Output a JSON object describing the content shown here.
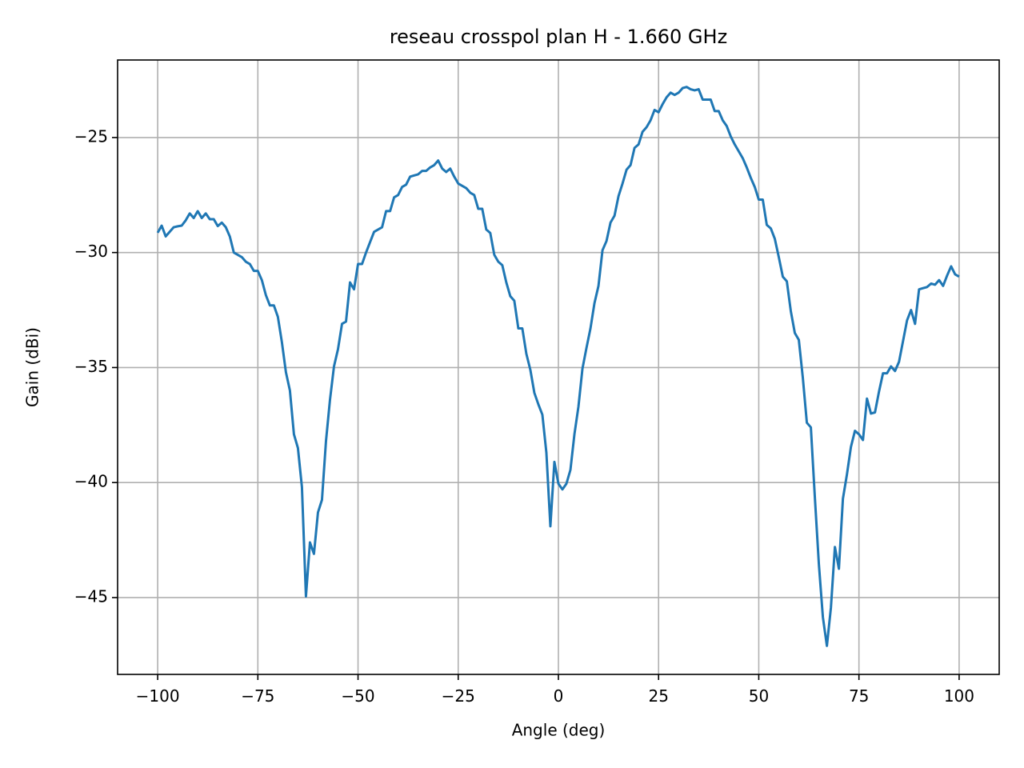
{
  "chart_data": {
    "type": "line",
    "title": "reseau crosspol plan H - 1.660 GHz",
    "x_label": "Angle (deg)",
    "y_label": "Gain (dBi)",
    "x": [
      -100,
      -99,
      -98,
      -97,
      -96,
      -95,
      -94,
      -93,
      -92,
      -91,
      -90,
      -89,
      -88,
      -87,
      -86,
      -85,
      -84,
      -83,
      -82,
      -81,
      -80,
      -79,
      -78,
      -77,
      -76,
      -75,
      -74,
      -73,
      -72,
      -71,
      -70,
      -69,
      -68,
      -67,
      -66,
      -65,
      -64,
      -63,
      -62,
      -61,
      -60,
      -59,
      -58,
      -57,
      -56,
      -55,
      -54,
      -53,
      -52,
      -51,
      -50,
      -49,
      -48,
      -47,
      -46,
      -45,
      -44,
      -43,
      -42,
      -41,
      -40,
      -39,
      -38,
      -37,
      -36,
      -35,
      -34,
      -33,
      -32,
      -31,
      -30,
      -29,
      -28,
      -27,
      -26,
      -25,
      -24,
      -23,
      -22,
      -21,
      -20,
      -19,
      -18,
      -17,
      -16,
      -15,
      -14,
      -13,
      -12,
      -11,
      -10,
      -9,
      -8,
      -7,
      -6,
      -5,
      -4,
      -3,
      -2,
      -1,
      0,
      1,
      2,
      3,
      4,
      5,
      6,
      7,
      8,
      9,
      10,
      11,
      12,
      13,
      14,
      15,
      16,
      17,
      18,
      19,
      20,
      21,
      22,
      23,
      24,
      25,
      26,
      27,
      28,
      29,
      30,
      31,
      32,
      33,
      34,
      35,
      36,
      37,
      38,
      39,
      40,
      41,
      42,
      43,
      44,
      45,
      46,
      47,
      48,
      49,
      50,
      51,
      52,
      53,
      54,
      55,
      56,
      57,
      58,
      59,
      60,
      61,
      62,
      63,
      64,
      65,
      66,
      67,
      68,
      69,
      70,
      71,
      72,
      73,
      74,
      75,
      76,
      77,
      78,
      79,
      80,
      81,
      82,
      83,
      84,
      85,
      86,
      87,
      88,
      89,
      90,
      91,
      92,
      93,
      94,
      95,
      96,
      97,
      98,
      99,
      100
    ],
    "series": [
      {
        "name": "gain",
        "color": "#1f77b4",
        "values": [
          -29.14,
          -28.83,
          -29.3,
          -29.1,
          -28.9,
          -28.86,
          -28.83,
          -28.6,
          -28.3,
          -28.5,
          -28.2,
          -28.5,
          -28.3,
          -28.55,
          -28.55,
          -28.85,
          -28.7,
          -28.9,
          -29.3,
          -30.0,
          -30.1,
          -30.2,
          -30.4,
          -30.5,
          -30.8,
          -30.8,
          -31.2,
          -31.85,
          -32.3,
          -32.3,
          -32.8,
          -33.9,
          -35.2,
          -36.0,
          -37.9,
          -38.5,
          -40.2,
          -44.95,
          -42.6,
          -43.1,
          -41.3,
          -40.75,
          -38.2,
          -36.4,
          -34.95,
          -34.2,
          -33.1,
          -33.0,
          -31.3,
          -31.6,
          -30.5,
          -30.5,
          -30.0,
          -29.55,
          -29.1,
          -29.0,
          -28.9,
          -28.2,
          -28.2,
          -27.6,
          -27.5,
          -27.15,
          -27.05,
          -26.7,
          -26.65,
          -26.6,
          -26.45,
          -26.45,
          -26.3,
          -26.2,
          -26.0,
          -26.35,
          -26.5,
          -26.35,
          -26.7,
          -27.0,
          -27.1,
          -27.2,
          -27.4,
          -27.5,
          -28.1,
          -28.1,
          -29.0,
          -29.15,
          -30.1,
          -30.4,
          -30.55,
          -31.3,
          -31.9,
          -32.1,
          -33.3,
          -33.3,
          -34.4,
          -35.1,
          -36.1,
          -36.6,
          -37.05,
          -38.7,
          -41.9,
          -39.1,
          -40.05,
          -40.3,
          -40.05,
          -39.45,
          -37.9,
          -36.7,
          -35.05,
          -34.15,
          -33.3,
          -32.2,
          -31.45,
          -29.9,
          -29.5,
          -28.7,
          -28.4,
          -27.55,
          -27.0,
          -26.4,
          -26.2,
          -25.45,
          -25.3,
          -24.75,
          -24.55,
          -24.25,
          -23.8,
          -23.9,
          -23.55,
          -23.25,
          -23.05,
          -23.15,
          -23.05,
          -22.85,
          -22.8,
          -22.9,
          -22.95,
          -22.9,
          -23.35,
          -23.35,
          -23.35,
          -23.85,
          -23.85,
          -24.25,
          -24.5,
          -24.95,
          -25.3,
          -25.6,
          -25.9,
          -26.3,
          -26.75,
          -27.15,
          -27.7,
          -27.7,
          -28.8,
          -28.95,
          -29.4,
          -30.2,
          -31.05,
          -31.25,
          -32.55,
          -33.5,
          -33.8,
          -35.45,
          -37.4,
          -37.6,
          -40.65,
          -43.55,
          -45.85,
          -47.1,
          -45.45,
          -42.8,
          -43.75,
          -40.7,
          -39.65,
          -38.45,
          -37.75,
          -37.9,
          -38.15,
          -36.35,
          -37.0,
          -36.95,
          -36.05,
          -35.25,
          -35.25,
          -34.95,
          -35.15,
          -34.75,
          -33.85,
          -32.95,
          -32.5,
          -33.1,
          -31.6,
          -31.55,
          -31.5,
          -31.35,
          -31.4,
          -31.2,
          -31.45,
          -31.0,
          -30.6,
          -30.95,
          -31.05
        ]
      }
    ],
    "xlim": [
      -110,
      110
    ],
    "ylim": [
      -48.34,
      -21.63
    ],
    "xticks": [
      {
        "value": -100,
        "label": "−100"
      },
      {
        "value": -75,
        "label": "−75"
      },
      {
        "value": -50,
        "label": "−50"
      },
      {
        "value": -25,
        "label": "−25"
      },
      0,
      25,
      50,
      75,
      100
    ],
    "yticks": [
      {
        "value": -45,
        "label": "−45"
      },
      {
        "value": -40,
        "label": "−40"
      },
      {
        "value": -35,
        "label": "−35"
      },
      {
        "value": -30,
        "label": "−30"
      },
      {
        "value": -25,
        "label": "−25"
      }
    ],
    "grid": true
  }
}
